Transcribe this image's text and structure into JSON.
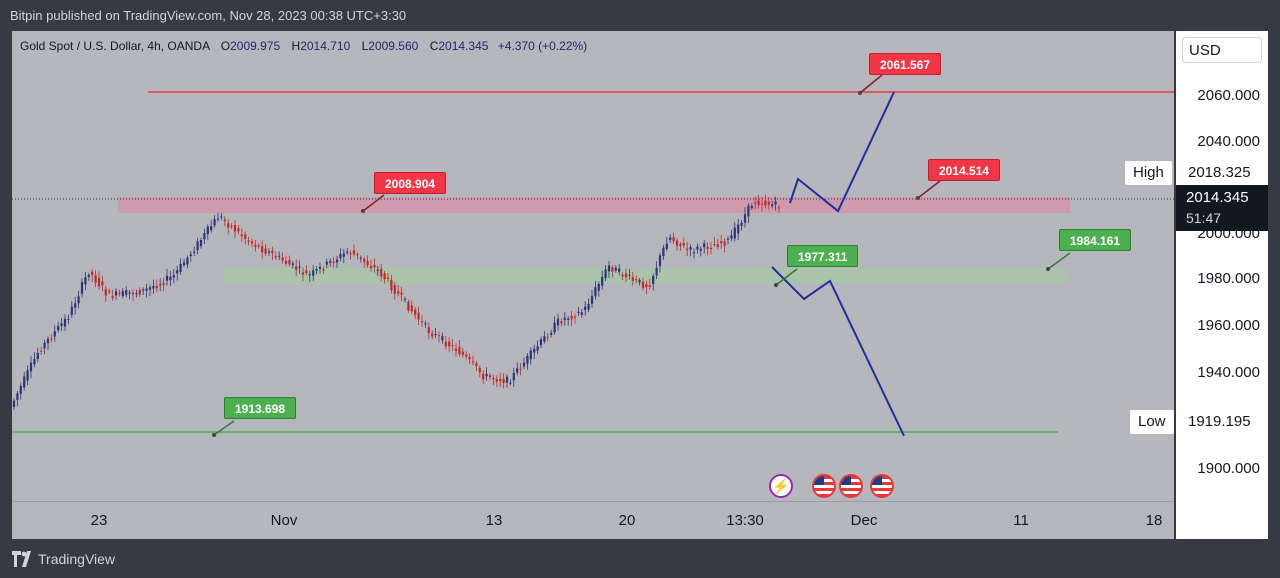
{
  "header": {
    "text": "Bitpin published on TradingView.com, Nov 28, 2023 00:38 UTC+3:30"
  },
  "legend": {
    "symbol": "Gold Spot / U.S. Dollar, 4h, OANDA",
    "open_label": "O",
    "open": "2009.975",
    "high_label": "H",
    "high": "2014.710",
    "low_label": "L",
    "low": "2009.560",
    "close_label": "C",
    "close": "2014.345",
    "change": "+4.370 (+0.22%)"
  },
  "price_axis": {
    "currency": "USD",
    "ticks": [
      "2060.000",
      "2040.000",
      "2000.000",
      "1980.000",
      "1960.000",
      "1940.000",
      "1900.000"
    ],
    "high_label": "High",
    "high_value": "2018.325",
    "low_label": "Low",
    "low_value": "1919.195",
    "current_price": "2014.345",
    "countdown": "51:47"
  },
  "time_axis": {
    "ticks": [
      "23",
      "Nov",
      "13",
      "20",
      "13:30",
      "Dec",
      "11",
      "18"
    ]
  },
  "annotations": {
    "a1": "2061.567",
    "a2": "2008.904",
    "a3": "2014.514",
    "a4": "1977.311",
    "a5": "1984.161",
    "a6": "1913.698"
  },
  "events": [
    "lightning-icon",
    "us-flag-icon",
    "us-flag-icon",
    "us-flag-icon"
  ],
  "colors": {
    "up": "#2b3578",
    "down": "#c62828",
    "resistance": "#f23645",
    "support": "#4caf50",
    "projection": "#1e2fa0",
    "resistance_zone": "#d98fa8",
    "support_zone": "#a6c8a6"
  },
  "footer": {
    "brand": "TradingView"
  }
}
